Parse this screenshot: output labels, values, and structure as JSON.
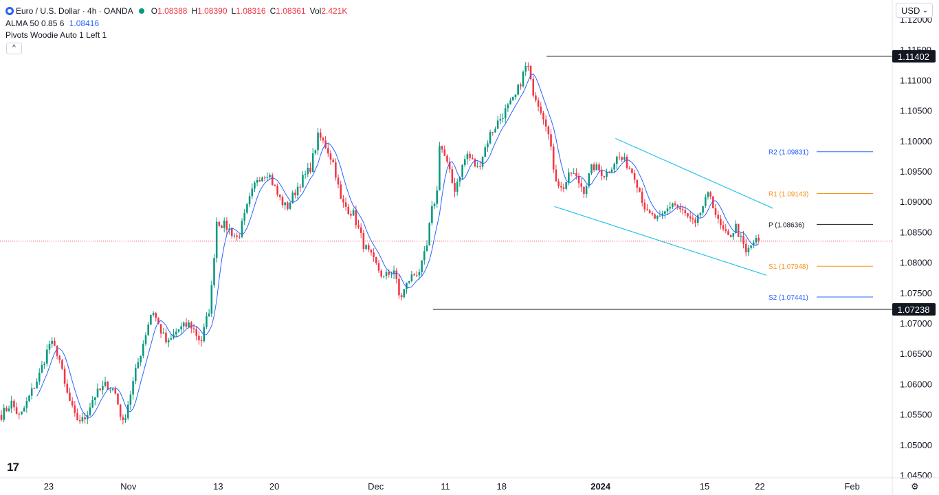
{
  "header": {
    "symbol": "Euro / U.S. Dollar · 4h · OANDA",
    "o_label": "O",
    "o_value": "1.08388",
    "h_label": "H",
    "h_value": "1.08390",
    "l_label": "L",
    "l_value": "1.08316",
    "c_label": "C",
    "c_value": "1.08361",
    "vol_label": "Vol",
    "vol_value": "2.421K",
    "alma_label": "ALMA 50 0.85 6",
    "alma_value": "1.08416",
    "pivots_label": "Pivots Woodie Auto 1 Left 1",
    "collapse_glyph": "^"
  },
  "currency": {
    "label": "USD",
    "chevron": "⌄"
  },
  "logo": {
    "text": "17"
  },
  "settings_icon": "⚙",
  "colors": {
    "up": "#089981",
    "down": "#f23645",
    "alma": "#2962ff",
    "channel": "#22c5e8",
    "pivot_r": "#f7931a",
    "pivot_p": "#131722",
    "price_line": "#f23645",
    "level": "#131722",
    "pivot_blue": "#2962ff"
  },
  "chart_data": {
    "type": "candlestick",
    "symbol": "Euro / U.S. Dollar",
    "timeframe": "4h",
    "ylim": [
      1.0445,
      1.1225
    ],
    "y_ticks": [
      "1.12000",
      "1.11500",
      "1.11000",
      "1.10500",
      "1.10000",
      "1.09500",
      "1.09000",
      "1.08500",
      "1.08000",
      "1.07500",
      "1.07000",
      "1.06500",
      "1.06000",
      "1.05500",
      "1.05000",
      "1.04500"
    ],
    "x_ticks": [
      "23",
      "Nov",
      "13",
      "20",
      "Dec",
      "11",
      "18",
      "2024",
      "15",
      "22",
      "Feb"
    ],
    "last_price": 1.08361,
    "horizontal_levels": [
      {
        "label": "1.11402",
        "value": 1.11402
      },
      {
        "label": "1.07238",
        "value": 1.07238
      }
    ],
    "pivots": [
      {
        "name": "R2",
        "label": "R2 (1.09831)",
        "value": 1.09831,
        "color": "#2962ff"
      },
      {
        "name": "R1",
        "label": "R1 (1.09143)",
        "value": 1.09143,
        "color": "#f7931a"
      },
      {
        "name": "P",
        "label": "P (1.08636)",
        "value": 1.08636,
        "color": "#131722"
      },
      {
        "name": "S1",
        "label": "S1 (1.07948)",
        "value": 1.07948,
        "color": "#f7931a"
      },
      {
        "name": "S2",
        "label": "S2 (1.07441)",
        "value": 1.07441,
        "color": "#2962ff"
      }
    ],
    "channel": {
      "upper": [
        [
          0.7322,
          1.1005
        ],
        [
          0.9202,
          1.089
        ]
      ],
      "lower": [
        [
          0.6595,
          1.0893
        ],
        [
          0.9121,
          1.078
        ]
      ]
    },
    "anchors": [
      [
        0.0,
        1.055
      ],
      [
        0.012,
        1.057
      ],
      [
        0.022,
        1.0545
      ],
      [
        0.035,
        1.0585
      ],
      [
        0.045,
        1.0615
      ],
      [
        0.058,
        1.067
      ],
      [
        0.068,
        1.065
      ],
      [
        0.076,
        1.0595
      ],
      [
        0.088,
        1.0545
      ],
      [
        0.098,
        1.054
      ],
      [
        0.11,
        1.058
      ],
      [
        0.125,
        1.06
      ],
      [
        0.135,
        1.059
      ],
      [
        0.145,
        1.0535
      ],
      [
        0.16,
        1.062
      ],
      [
        0.175,
        1.07
      ],
      [
        0.18,
        1.0725
      ],
      [
        0.188,
        1.0695
      ],
      [
        0.198,
        1.0665
      ],
      [
        0.21,
        1.069
      ],
      [
        0.225,
        1.07
      ],
      [
        0.238,
        1.067
      ],
      [
        0.248,
        1.0725
      ],
      [
        0.252,
        1.0775
      ],
      [
        0.256,
        1.087
      ],
      [
        0.268,
        1.086
      ],
      [
        0.282,
        1.084
      ],
      [
        0.295,
        1.09
      ],
      [
        0.305,
        1.094
      ],
      [
        0.318,
        1.095
      ],
      [
        0.33,
        1.091
      ],
      [
        0.34,
        1.089
      ],
      [
        0.355,
        1.093
      ],
      [
        0.368,
        1.0955
      ],
      [
        0.378,
        1.101
      ],
      [
        0.388,
        1.099
      ],
      [
        0.397,
        1.096
      ],
      [
        0.405,
        1.09
      ],
      [
        0.42,
        1.088
      ],
      [
        0.432,
        1.083
      ],
      [
        0.445,
        1.08
      ],
      [
        0.456,
        1.0775
      ],
      [
        0.468,
        1.079
      ],
      [
        0.475,
        1.074
      ],
      [
        0.487,
        1.0775
      ],
      [
        0.5,
        1.079
      ],
      [
        0.508,
        1.083
      ],
      [
        0.512,
        1.088
      ],
      [
        0.52,
        1.092
      ],
      [
        0.522,
        1.1
      ],
      [
        0.53,
        1.097
      ],
      [
        0.54,
        1.092
      ],
      [
        0.555,
        1.098
      ],
      [
        0.568,
        1.0955
      ],
      [
        0.582,
        1.101
      ],
      [
        0.598,
        1.1045
      ],
      [
        0.612,
        1.107
      ],
      [
        0.622,
        1.111
      ],
      [
        0.627,
        1.113
      ],
      [
        0.632,
        1.109
      ],
      [
        0.64,
        1.1065
      ],
      [
        0.65,
        1.103
      ],
      [
        0.66,
        1.0945
      ],
      [
        0.668,
        1.092
      ],
      [
        0.68,
        1.095
      ],
      [
        0.695,
        1.092
      ],
      [
        0.705,
        1.096
      ],
      [
        0.72,
        1.0945
      ],
      [
        0.735,
        1.0975
      ],
      [
        0.745,
        1.0965
      ],
      [
        0.755,
        1.0945
      ],
      [
        0.77,
        1.088
      ],
      [
        0.785,
        1.087
      ],
      [
        0.8,
        1.09
      ],
      [
        0.815,
        1.088
      ],
      [
        0.828,
        1.086
      ],
      [
        0.835,
        1.089
      ],
      [
        0.845,
        1.0915
      ],
      [
        0.855,
        1.0865
      ],
      [
        0.866,
        1.084
      ],
      [
        0.876,
        1.086
      ],
      [
        0.888,
        1.0815
      ],
      [
        0.897,
        1.0835
      ],
      [
        0.903,
        1.0836
      ]
    ]
  }
}
